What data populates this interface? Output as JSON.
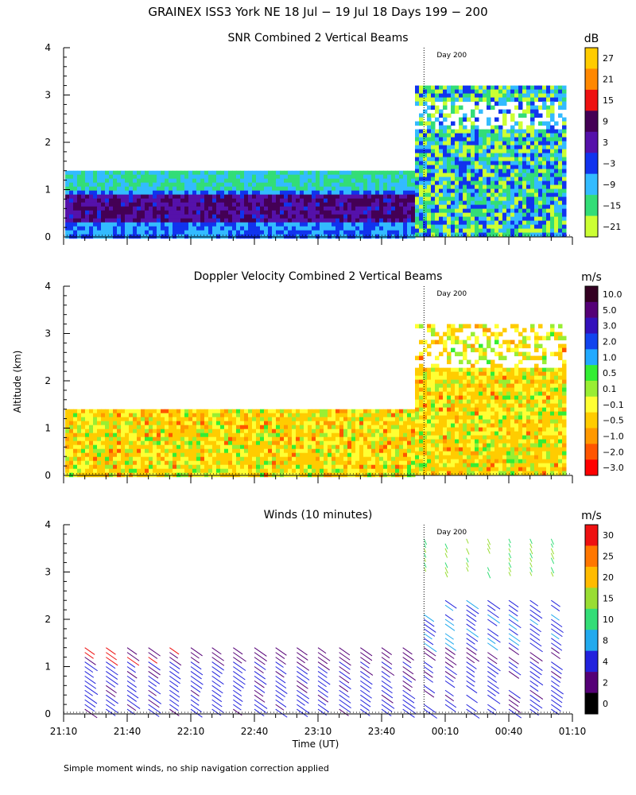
{
  "page": {
    "title": "GRAINEX ISS3 York NE  18 Jul − 19 Jul 18 Days 199 − 200",
    "y_axis_label": "Altitude (km)",
    "x_axis_label": "Time (UT)",
    "footnote": "Simple moment winds, no ship navigation correction applied"
  },
  "chart_data": [
    {
      "type": "heatmap",
      "title": "SNR Combined 2 Vertical Beams",
      "units": "dB",
      "xlabel": "",
      "ylabel": "Altitude (km)",
      "ylim": [
        0,
        4
      ],
      "yticks": [
        "0",
        "1",
        "2",
        "3",
        "4"
      ],
      "day_marker": "Day 200",
      "colorbar": {
        "labels": [
          "27",
          "21",
          "15",
          "9",
          "3",
          "−3",
          "−9",
          "−15",
          "−21"
        ],
        "colors": [
          "#ffcc00",
          "#ff8800",
          "#ee1111",
          "#440055",
          "#5511aa",
          "#1133ee",
          "#33bbff",
          "#33dd77",
          "#ccff33"
        ]
      }
    },
    {
      "type": "heatmap",
      "title": "Doppler Velocity Combined 2 Vertical Beams",
      "units": "m/s",
      "xlabel": "",
      "ylabel": "Altitude (km)",
      "ylim": [
        0,
        4
      ],
      "yticks": [
        "0",
        "1",
        "2",
        "3",
        "4"
      ],
      "day_marker": "Day 200",
      "colorbar": {
        "labels": [
          "10.0",
          "5.0",
          "3.0",
          "2.0",
          "1.0",
          "0.5",
          "0.1",
          "−0.1",
          "−0.5",
          "−1.0",
          "−2.0",
          "−3.0"
        ],
        "colors": [
          "#330022",
          "#550077",
          "#3311bb",
          "#1144ee",
          "#22aaff",
          "#33ee33",
          "#99ee33",
          "#ffff33",
          "#ffcc00",
          "#ff9900",
          "#ff5500",
          "#ff0000"
        ]
      }
    },
    {
      "type": "scatter",
      "title": "Winds (10 minutes)",
      "units": "m/s",
      "xlabel": "Time (UT)",
      "ylabel": "Altitude (km)",
      "ylim": [
        0,
        4
      ],
      "yticks": [
        "0",
        "1",
        "2",
        "3",
        "4"
      ],
      "xticks": [
        "21:10",
        "21:40",
        "22:10",
        "22:40",
        "23:10",
        "23:40",
        "00:10",
        "00:40",
        "01:10"
      ],
      "day_marker": "Day 200",
      "colorbar": {
        "labels": [
          "30",
          "25",
          "20",
          "15",
          "10",
          "8",
          "4",
          "2",
          "0"
        ],
        "colors": [
          "#ee1111",
          "#ff7700",
          "#ffbb00",
          "#99dd33",
          "#33dd77",
          "#22aaee",
          "#2222dd",
          "#550077",
          "#000000"
        ]
      }
    }
  ]
}
